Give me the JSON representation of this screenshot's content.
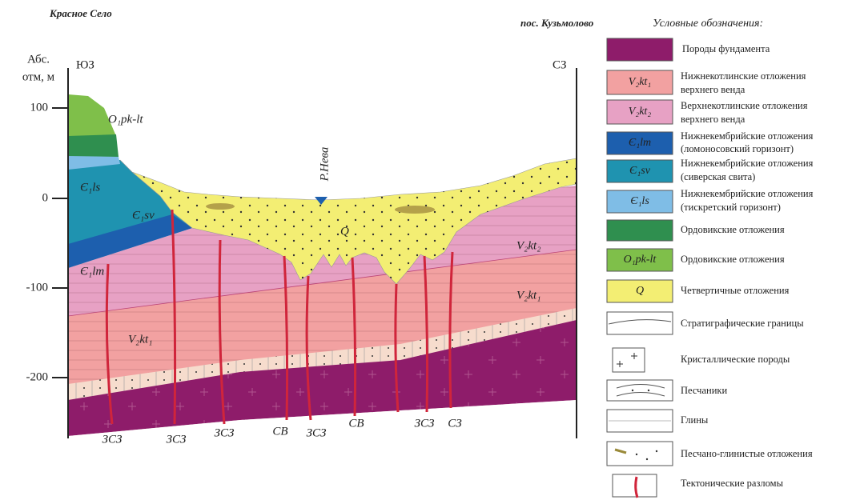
{
  "header": {
    "left_place": "Красное Село",
    "right_place": "пос. Кузьмолово"
  },
  "axis": {
    "title": [
      "Абс.",
      "отм, м"
    ],
    "ticks": [
      "100",
      "0",
      "-100",
      "-200"
    ],
    "left_dir": "ЮЗ",
    "right_dir": "СЗ"
  },
  "section_labels": [
    "O₁pk-lt",
    "Є₁ls",
    "Є₁sv",
    "Є₁lm",
    "Q",
    "V₂kt₂",
    "V₂kt₁",
    "V₂kt₁",
    "Р.Нева"
  ],
  "faults": [
    "ЗСЗ",
    "ЗСЗ",
    "ЗСЗ",
    "СВ",
    "ЗСЗ",
    "СВ",
    "ЗСЗ",
    "СЗ"
  ],
  "legend": {
    "title": "Условные обозначения:",
    "items": [
      {
        "lines": [
          "Породы фундамента"
        ]
      },
      {
        "code": "V₂kt₁",
        "lines": [
          "Нижнекотлинские отложения",
          "верхнего венда"
        ]
      },
      {
        "code": "V₂kt₂",
        "lines": [
          "Верхнекотлинские отложения",
          "верхнего венда"
        ]
      },
      {
        "code": "Є₁lm",
        "lines": [
          "Нижнекембрийские отложения",
          "(ломоносовский горизонт)"
        ]
      },
      {
        "code": "Є₁sv",
        "lines": [
          "Нижнекембрийские отложения",
          "(сиверская свита)"
        ]
      },
      {
        "code": "Є₁ls",
        "lines": [
          "Нижнекембрийские отложения",
          "(тискретский горизонт)"
        ]
      },
      {
        "lines": [
          "Ордовикские отложения"
        ]
      },
      {
        "code": "O₁pk-lt",
        "lines": [
          "Ордовикские отложения"
        ]
      },
      {
        "code": "Q",
        "lines": [
          "Четвертичные отложения"
        ]
      },
      {
        "lines": [
          "Стратиграфические границы"
        ]
      },
      {
        "lines": [
          "Кристаллические породы"
        ]
      },
      {
        "lines": [
          "Песчаники"
        ]
      },
      {
        "lines": [
          "Глины"
        ]
      },
      {
        "lines": [
          "Песчано-глинистые отложения"
        ]
      },
      {
        "lines": [
          "Тектонические разломы"
        ]
      }
    ]
  }
}
